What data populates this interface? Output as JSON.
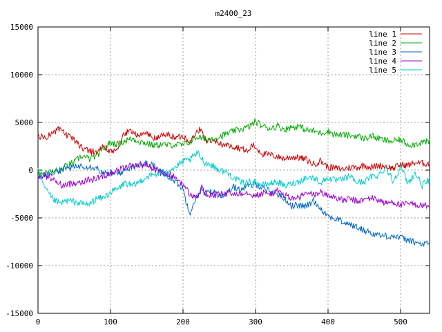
{
  "chart_data": {
    "type": "line",
    "title": "m2400_23",
    "xlabel": "",
    "ylabel": "",
    "xlim": [
      0,
      540
    ],
    "ylim": [
      -15000,
      15000
    ],
    "xticks": [
      0,
      100,
      200,
      300,
      400,
      500
    ],
    "yticks": [
      -15000,
      -10000,
      -5000,
      0,
      5000,
      10000,
      15000
    ],
    "grid": true,
    "legend_position": "top-right",
    "series": [
      {
        "name": "line 1",
        "color": "#cc0000",
        "x": [
          0,
          10,
          20,
          30,
          40,
          50,
          60,
          70,
          80,
          90,
          100,
          110,
          120,
          130,
          140,
          150,
          160,
          170,
          180,
          190,
          200,
          210,
          220,
          225,
          230,
          240,
          250,
          260,
          270,
          280,
          290,
          295,
          300,
          310,
          320,
          330,
          340,
          350,
          360,
          370,
          380,
          390,
          400,
          410,
          420,
          430,
          440,
          450,
          460,
          470,
          480,
          490,
          500,
          510,
          520,
          530,
          540
        ],
        "y": [
          3600,
          3400,
          3900,
          4300,
          3600,
          3200,
          2400,
          2100,
          1800,
          2500,
          1800,
          2300,
          3900,
          4100,
          3600,
          3900,
          3300,
          3600,
          3700,
          3400,
          3600,
          3000,
          4000,
          4400,
          3200,
          3000,
          2800,
          2600,
          2500,
          2300,
          1900,
          2700,
          2400,
          1700,
          1600,
          1400,
          1200,
          1400,
          1300,
          1100,
          600,
          1000,
          300,
          200,
          100,
          300,
          300,
          500,
          300,
          500,
          400,
          200,
          600,
          500,
          800,
          700,
          700
        ]
      },
      {
        "name": "line 2",
        "color": "#00aa00",
        "x": [
          0,
          10,
          20,
          30,
          40,
          50,
          60,
          70,
          80,
          90,
          100,
          110,
          120,
          130,
          140,
          150,
          160,
          170,
          180,
          190,
          200,
          210,
          220,
          230,
          240,
          250,
          260,
          270,
          280,
          290,
          300,
          310,
          320,
          330,
          340,
          350,
          360,
          370,
          380,
          390,
          400,
          410,
          420,
          430,
          440,
          450,
          460,
          470,
          480,
          490,
          500,
          510,
          520,
          530,
          540
        ],
        "y": [
          -200,
          -300,
          -200,
          0,
          500,
          800,
          1500,
          1200,
          1400,
          2200,
          2900,
          2700,
          3100,
          3300,
          3000,
          2800,
          2600,
          2700,
          2600,
          2700,
          2600,
          3000,
          3500,
          3200,
          3300,
          3500,
          3800,
          4100,
          4300,
          4500,
          5100,
          4600,
          4400,
          4600,
          4300,
          4500,
          4600,
          4200,
          4100,
          3900,
          4100,
          3700,
          3700,
          3600,
          3600,
          3300,
          3600,
          3300,
          3100,
          3000,
          3200,
          2700,
          2700,
          3000,
          2900
        ]
      },
      {
        "name": "line 3",
        "color": "#0066cc",
        "x": [
          0,
          10,
          20,
          30,
          40,
          50,
          60,
          70,
          80,
          90,
          100,
          110,
          120,
          130,
          140,
          150,
          160,
          170,
          180,
          190,
          200,
          205,
          210,
          215,
          220,
          225,
          230,
          240,
          250,
          260,
          270,
          280,
          290,
          300,
          310,
          320,
          330,
          340,
          350,
          360,
          370,
          380,
          390,
          400,
          410,
          420,
          430,
          440,
          450,
          460,
          470,
          480,
          490,
          500,
          510,
          520,
          530,
          540
        ],
        "y": [
          -800,
          -500,
          -300,
          0,
          200,
          300,
          500,
          400,
          300,
          -400,
          -300,
          -400,
          0,
          400,
          600,
          700,
          500,
          -300,
          -600,
          -1200,
          -2000,
          -3500,
          -4400,
          -3300,
          -2800,
          -2000,
          -2500,
          -2200,
          -2600,
          -2500,
          -1800,
          -2000,
          -1700,
          -1500,
          -1800,
          -2200,
          -2500,
          -3000,
          -3700,
          -3700,
          -3800,
          -3200,
          -4000,
          -4800,
          -5100,
          -5400,
          -5700,
          -6000,
          -6300,
          -6600,
          -6800,
          -6900,
          -6900,
          -7100,
          -7300,
          -7600,
          -7800,
          -7700
        ]
      },
      {
        "name": "line 4",
        "color": "#9900cc",
        "x": [
          0,
          10,
          20,
          30,
          40,
          50,
          60,
          70,
          80,
          90,
          100,
          110,
          120,
          130,
          140,
          150,
          160,
          170,
          180,
          190,
          200,
          210,
          220,
          225,
          230,
          240,
          250,
          260,
          270,
          280,
          290,
          300,
          310,
          320,
          330,
          340,
          350,
          360,
          370,
          380,
          390,
          400,
          410,
          420,
          430,
          440,
          450,
          460,
          470,
          480,
          490,
          500,
          510,
          520,
          530,
          540
        ],
        "y": [
          -800,
          -600,
          -900,
          -1500,
          -1600,
          -1300,
          -1200,
          -1000,
          -900,
          -600,
          -300,
          0,
          300,
          500,
          600,
          500,
          200,
          -300,
          -400,
          -800,
          -1500,
          -2600,
          -2800,
          -1700,
          -2500,
          -2600,
          -2600,
          -2400,
          -2500,
          -2400,
          -2300,
          -2700,
          -2400,
          -2500,
          -2200,
          -2600,
          -3000,
          -2900,
          -2400,
          -2600,
          -2300,
          -2700,
          -2800,
          -3200,
          -3000,
          -3300,
          -3100,
          -2900,
          -3100,
          -3500,
          -3300,
          -3700,
          -3500,
          -3600,
          -3700,
          -3700
        ]
      },
      {
        "name": "line 5",
        "color": "#00cccc",
        "x": [
          0,
          10,
          20,
          30,
          40,
          50,
          60,
          70,
          80,
          90,
          100,
          110,
          120,
          130,
          140,
          150,
          160,
          170,
          180,
          190,
          200,
          210,
          220,
          230,
          240,
          250,
          260,
          270,
          280,
          290,
          300,
          310,
          320,
          330,
          340,
          350,
          360,
          370,
          380,
          390,
          400,
          410,
          420,
          430,
          440,
          450,
          460,
          470,
          480,
          490,
          500,
          510,
          520,
          530,
          540
        ],
        "y": [
          0,
          -2000,
          -3000,
          -3500,
          -3200,
          -3300,
          -3500,
          -3600,
          -3000,
          -2900,
          -2300,
          -2000,
          -1300,
          -1700,
          -1200,
          -700,
          -500,
          -300,
          0,
          300,
          900,
          1100,
          1800,
          800,
          500,
          0,
          -200,
          -800,
          -1300,
          -1300,
          -1200,
          -1600,
          -1400,
          -1200,
          -1700,
          -1400,
          -1200,
          -800,
          -800,
          -1300,
          -800,
          -1100,
          -1000,
          -600,
          -1300,
          -1200,
          -700,
          -500,
          300,
          -1200,
          400,
          -1400,
          -300,
          -1600,
          -1000
        ]
      }
    ]
  }
}
